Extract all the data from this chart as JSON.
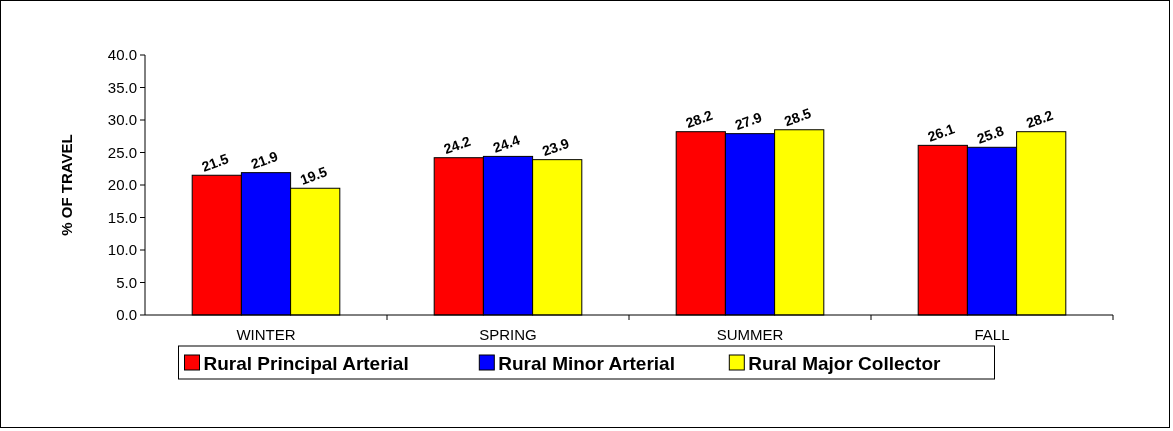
{
  "chart_data": {
    "type": "bar",
    "ylabel": "% OF TRAVEL",
    "categories": [
      "WINTER",
      "SPRING",
      "SUMMER",
      "FALL"
    ],
    "series": [
      {
        "name": "Rural Principal Arterial",
        "color": "#ff0000",
        "values": [
          21.5,
          24.2,
          28.2,
          26.1
        ]
      },
      {
        "name": "Rural Minor Arterial",
        "color": "#0000ff",
        "values": [
          21.9,
          24.4,
          27.9,
          25.8
        ]
      },
      {
        "name": "Rural Major Collector",
        "color": "#ffff00",
        "values": [
          19.5,
          23.9,
          28.5,
          28.2
        ]
      }
    ],
    "ylim": [
      0,
      40
    ],
    "yticks": [
      {
        "value": 0,
        "label": "0.0"
      },
      {
        "value": 5,
        "label": "5.0"
      },
      {
        "value": 10,
        "label": "10.0"
      },
      {
        "value": 15,
        "label": "15.0"
      },
      {
        "value": 20,
        "label": "20.0"
      },
      {
        "value": 25,
        "label": "25.0"
      },
      {
        "value": 30,
        "label": "30.0"
      },
      {
        "value": 35,
        "label": "35.0"
      },
      {
        "value": 40,
        "label": "40.0"
      }
    ],
    "data_labels": true,
    "legend": "bottom",
    "grid": false
  }
}
